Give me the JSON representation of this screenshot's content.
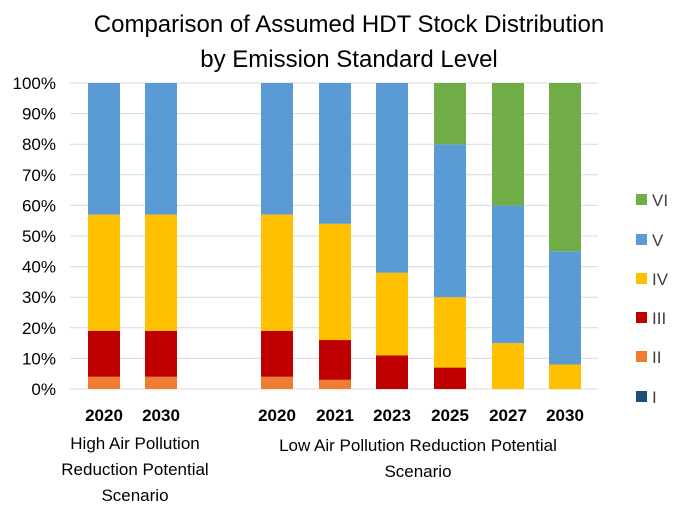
{
  "chart_data": {
    "type": "bar",
    "stacked": true,
    "title": "Comparison of Assumed HDT Stock Distribution by Emission Standard Level",
    "title_lines": [
      "Comparison of Assumed HDT Stock Distribution",
      "by Emission Standard Level"
    ],
    "y_axis": {
      "min": 0,
      "max": 100,
      "step": 10,
      "unit": "%",
      "ticks": [
        "0%",
        "10%",
        "20%",
        "30%",
        "40%",
        "50%",
        "60%",
        "70%",
        "80%",
        "90%",
        "100%"
      ]
    },
    "grid": true,
    "legend_position": "right",
    "groups": [
      {
        "label_lines": [
          "High Air Pollution",
          "Reduction Potential",
          "Scenario"
        ],
        "categories": [
          "2020",
          "2030"
        ]
      },
      {
        "label_lines": [
          "Low Air Pollution Reduction Potential",
          "Scenario"
        ],
        "categories": [
          "2020",
          "2021",
          "2023",
          "2025",
          "2027",
          "2030"
        ]
      }
    ],
    "categories": [
      "2020",
      "2030",
      "2020",
      "2021",
      "2023",
      "2025",
      "2027",
      "2030"
    ],
    "series": [
      {
        "name": "I",
        "color": "#1F4E79",
        "values": [
          0,
          0,
          0,
          0,
          0,
          0,
          0,
          0
        ]
      },
      {
        "name": "II",
        "color": "#ED7D31",
        "values": [
          4,
          4,
          4,
          3,
          0,
          0,
          0,
          0
        ]
      },
      {
        "name": "III",
        "color": "#C00000",
        "values": [
          15,
          15,
          15,
          13,
          11,
          7,
          0,
          0
        ]
      },
      {
        "name": "IV",
        "color": "#FFC000",
        "values": [
          38,
          38,
          38,
          38,
          27,
          23,
          15,
          8
        ]
      },
      {
        "name": "V",
        "color": "#5B9BD5",
        "values": [
          43,
          43,
          43,
          46,
          62,
          50,
          45,
          37
        ]
      },
      {
        "name": "VI",
        "color": "#70AD47",
        "values": [
          0,
          0,
          0,
          0,
          0,
          20,
          40,
          55
        ]
      }
    ]
  }
}
